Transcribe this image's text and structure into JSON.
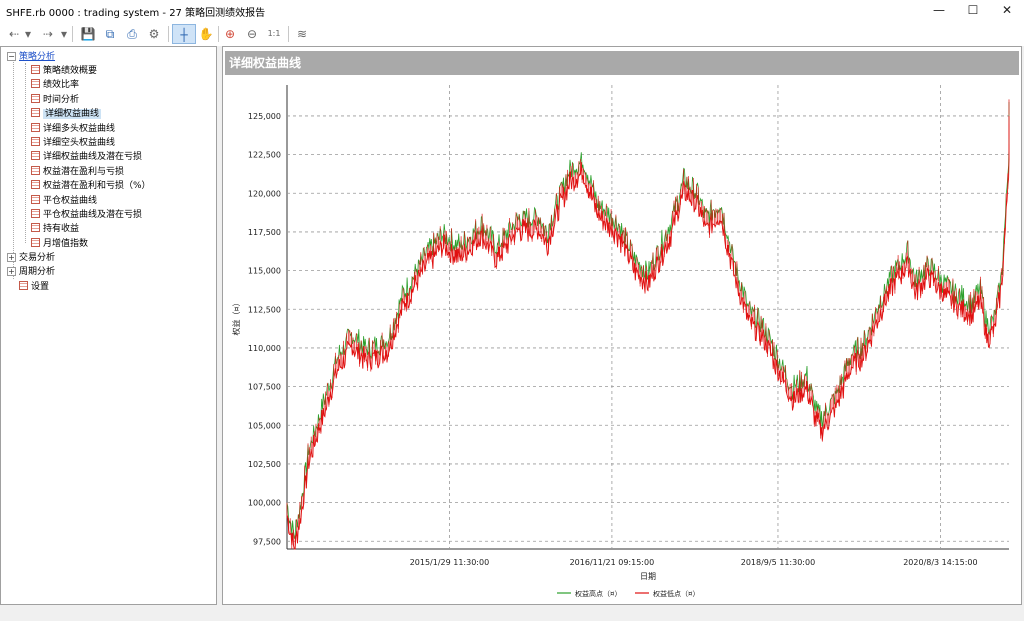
{
  "window": {
    "title": "SHFE.rb 0000 : trading system - 27 策略回测绩效报告"
  },
  "toolbar": {
    "back": "⇠",
    "forward": "⇢",
    "dd": "▾",
    "save": "💾",
    "copy": "⧉",
    "print": "⎙",
    "settings": "⚙",
    "crosshair": "┼",
    "hand": "✋",
    "zoom_in": "⊕",
    "zoom_out": "⊖",
    "reset": "1:1",
    "chart": "≋"
  },
  "tree": {
    "root": "策略分析",
    "items": [
      "策略绩效概要",
      "绩效比率",
      "时间分析",
      "详细权益曲线",
      "详细多头权益曲线",
      "详细空头权益曲线",
      "详细权益曲线及潜在亏损",
      "权益潜在盈利与亏损",
      "权益潜在盈利和亏损（%）",
      "平仓权益曲线",
      "平仓权益曲线及潜在亏损",
      "持有收益",
      "月增值指数"
    ],
    "groups": [
      "交易分析",
      "周期分析"
    ],
    "settings": "设置",
    "selected_index": 3
  },
  "panel": {
    "title": "详细权益曲线"
  },
  "chart_data": {
    "type": "line",
    "title": "",
    "xlabel": "日期",
    "ylabel": "权益（¤）",
    "ylim": [
      97000,
      127000
    ],
    "yticks": [
      "97,500",
      "100,000",
      "102,500",
      "105,000",
      "107,500",
      "110,000",
      "112,500",
      "115,000",
      "117,500",
      "120,000",
      "122,500",
      "125,000"
    ],
    "ytick_values": [
      97500,
      100000,
      102500,
      105000,
      107500,
      110000,
      112500,
      115000,
      117500,
      120000,
      122500,
      125000
    ],
    "xticks": [
      "2015/1/29 11:30:00",
      "2016/11/21 09:15:00",
      "2018/9/5 11:30:00",
      "2020/8/3 14:15:00"
    ],
    "xtick_positions": [
      0.225,
      0.45,
      0.68,
      0.905
    ],
    "legend_position": "bottom",
    "grid": true,
    "series": [
      {
        "name": "权益高点（¤）",
        "color": "#2ca02c"
      },
      {
        "name": "权益低点（¤）",
        "color": "#e01010"
      }
    ],
    "anchors": [
      [
        0.0,
        99500
      ],
      [
        0.01,
        97400
      ],
      [
        0.02,
        99800
      ],
      [
        0.03,
        103000
      ],
      [
        0.05,
        106000
      ],
      [
        0.07,
        109000
      ],
      [
        0.09,
        110500
      ],
      [
        0.11,
        109500
      ],
      [
        0.14,
        110200
      ],
      [
        0.16,
        113000
      ],
      [
        0.19,
        115500
      ],
      [
        0.215,
        117000
      ],
      [
        0.24,
        116200
      ],
      [
        0.27,
        117700
      ],
      [
        0.29,
        116100
      ],
      [
        0.32,
        118000
      ],
      [
        0.35,
        118000
      ],
      [
        0.36,
        117000
      ],
      [
        0.37,
        118500
      ],
      [
        0.39,
        121000
      ],
      [
        0.41,
        121800
      ],
      [
        0.43,
        119000
      ],
      [
        0.46,
        117600
      ],
      [
        0.48,
        115500
      ],
      [
        0.5,
        114500
      ],
      [
        0.53,
        117500
      ],
      [
        0.55,
        120500
      ],
      [
        0.57,
        119500
      ],
      [
        0.58,
        118000
      ],
      [
        0.6,
        119000
      ],
      [
        0.62,
        115000
      ],
      [
        0.64,
        112000
      ],
      [
        0.66,
        111000
      ],
      [
        0.68,
        109000
      ],
      [
        0.7,
        107000
      ],
      [
        0.72,
        107800
      ],
      [
        0.73,
        106000
      ],
      [
        0.74,
        105000
      ],
      [
        0.76,
        106500
      ],
      [
        0.78,
        109000
      ],
      [
        0.8,
        110000
      ],
      [
        0.82,
        112500
      ],
      [
        0.84,
        114500
      ],
      [
        0.86,
        115800
      ],
      [
        0.87,
        114000
      ],
      [
        0.89,
        115000
      ],
      [
        0.91,
        113800
      ],
      [
        0.93,
        113000
      ],
      [
        0.95,
        112500
      ],
      [
        0.96,
        113500
      ],
      [
        0.97,
        111000
      ],
      [
        0.98,
        111500
      ],
      [
        0.985,
        113000
      ],
      [
        0.99,
        114500
      ],
      [
        0.995,
        118000
      ],
      [
        1.0,
        122500
      ],
      [
        1.005,
        125000
      ]
    ]
  }
}
